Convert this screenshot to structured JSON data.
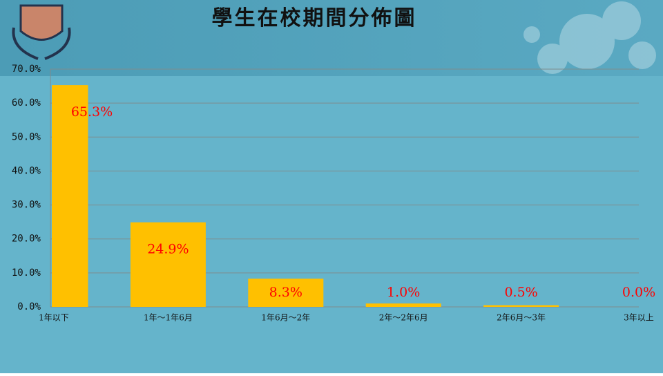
{
  "chart_data": {
    "type": "bar",
    "title": "學生在校期間分佈圖",
    "categories": [
      "1年以下",
      "1年～1年6月",
      "1年6月～2年",
      "2年～2年6月",
      "2年6月～3年",
      "3年以上"
    ],
    "values": [
      65.3,
      24.9,
      8.3,
      1.0,
      0.5,
      0.0
    ],
    "value_labels": [
      "65.3%",
      "24.9%",
      "8.3%",
      "1.0%",
      "0.5%",
      "0.0%"
    ],
    "color": "#ffc000",
    "label_color": "#ff0000",
    "ylim": [
      0,
      70
    ],
    "yticks": [
      {
        "value": 0,
        "label": "0.0%"
      },
      {
        "value": 10,
        "label": "10.0%"
      },
      {
        "value": 20,
        "label": "20.0%"
      },
      {
        "value": 30,
        "label": "30.0%"
      },
      {
        "value": 40,
        "label": "40.0%"
      },
      {
        "value": 50,
        "label": "50.0%"
      },
      {
        "value": 60,
        "label": "60.0%"
      },
      {
        "value": 70,
        "label": "70.0%"
      }
    ],
    "grid": true
  }
}
